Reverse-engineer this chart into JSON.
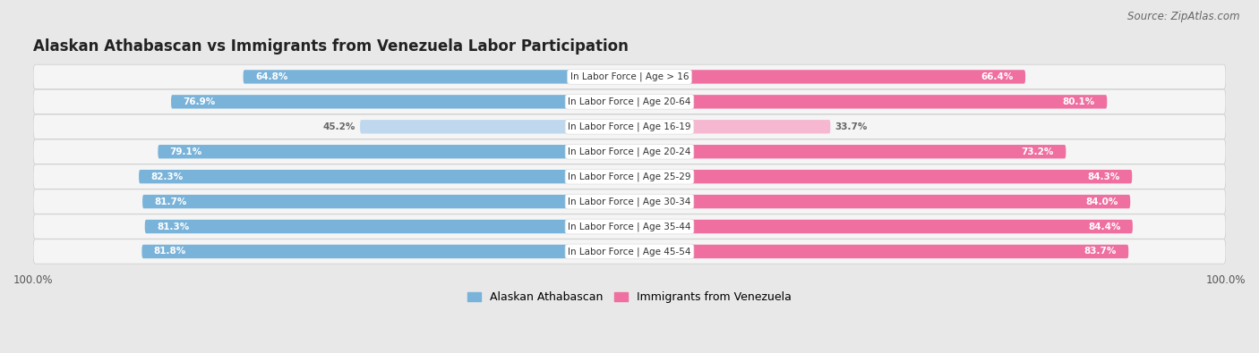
{
  "title": "Alaskan Athabascan vs Immigrants from Venezuela Labor Participation",
  "source": "Source: ZipAtlas.com",
  "categories": [
    "In Labor Force | Age > 16",
    "In Labor Force | Age 20-64",
    "In Labor Force | Age 16-19",
    "In Labor Force | Age 20-24",
    "In Labor Force | Age 25-29",
    "In Labor Force | Age 30-34",
    "In Labor Force | Age 35-44",
    "In Labor Force | Age 45-54"
  ],
  "left_values": [
    64.8,
    76.9,
    45.2,
    79.1,
    82.3,
    81.7,
    81.3,
    81.8
  ],
  "right_values": [
    66.4,
    80.1,
    33.7,
    73.2,
    84.3,
    84.0,
    84.4,
    83.7
  ],
  "left_color": "#7ab3d9",
  "right_color": "#ee6fa0",
  "left_color_light": "#c0d8ee",
  "right_color_light": "#f5b8d0",
  "background_color": "#e8e8e8",
  "row_bg": "#f5f5f5",
  "left_label": "Alaskan Athabascan",
  "right_label": "Immigrants from Venezuela",
  "max_value": 100.0,
  "title_fontsize": 12,
  "source_fontsize": 8.5,
  "label_fontsize": 7.5,
  "value_fontsize": 7.5
}
